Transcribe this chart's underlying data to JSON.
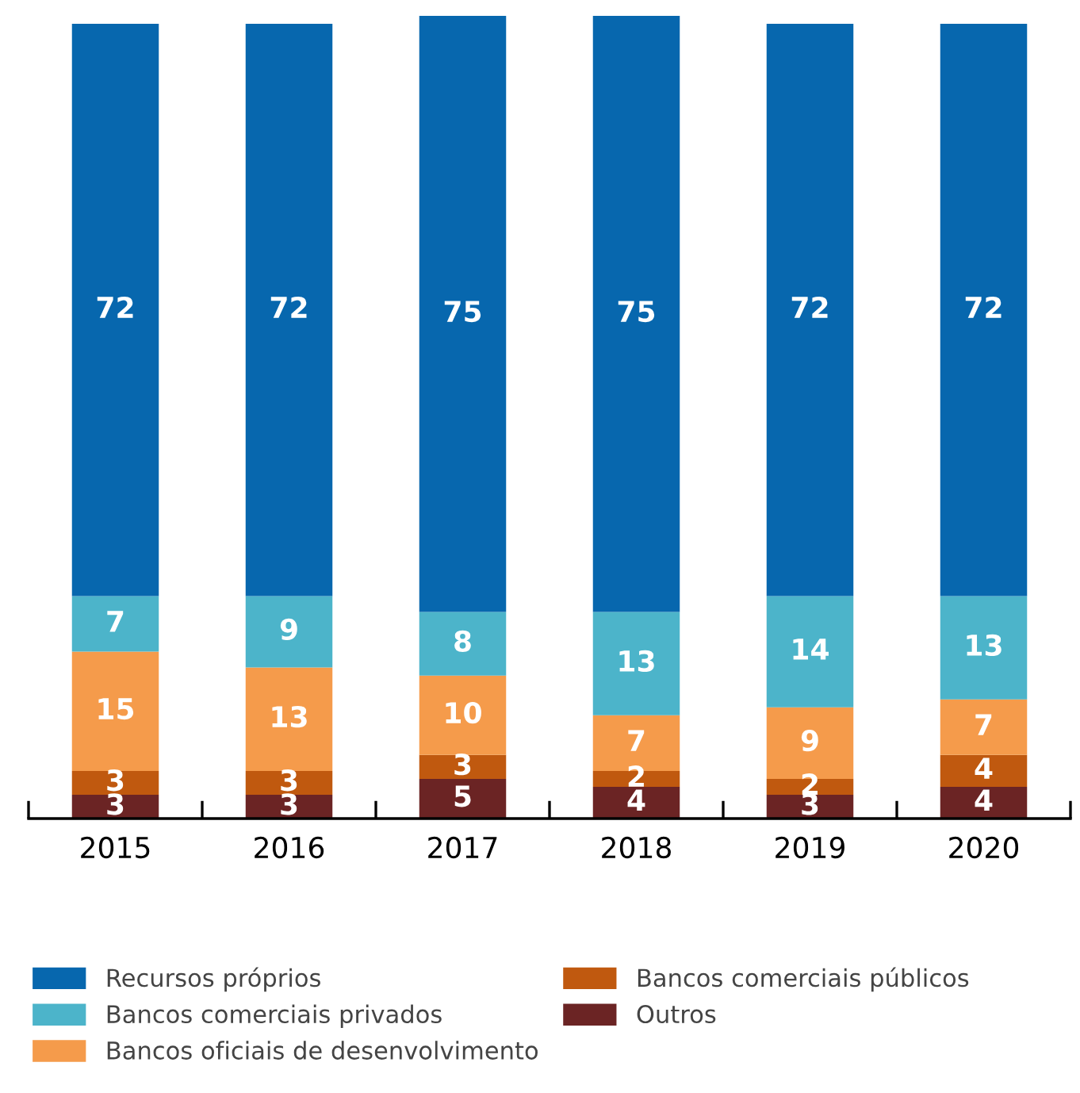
{
  "chart_data": {
    "type": "bar",
    "stacked": true,
    "data_labels": true,
    "grid": false,
    "legend": "bottom",
    "categories": [
      "2015",
      "2016",
      "2017",
      "2018",
      "2019",
      "2020"
    ],
    "series": [
      {
        "name": "Outros",
        "color": "#6b2424",
        "values": [
          3,
          3,
          5,
          4,
          3,
          4
        ]
      },
      {
        "name": "Bancos comerciais públicos",
        "color": "#c0590f",
        "values": [
          3,
          3,
          3,
          2,
          2,
          4
        ]
      },
      {
        "name": "Bancos oficiais de desenvolvimento",
        "color": "#f59b4b",
        "values": [
          15,
          13,
          10,
          7,
          9,
          7
        ]
      },
      {
        "name": "Bancos comerciais privados",
        "color": "#4cb4ca",
        "values": [
          7,
          9,
          8,
          13,
          14,
          13
        ]
      },
      {
        "name": "Recursos próprios",
        "color": "#0767ae",
        "values": [
          72,
          72,
          75,
          75,
          72,
          72
        ]
      }
    ]
  }
}
